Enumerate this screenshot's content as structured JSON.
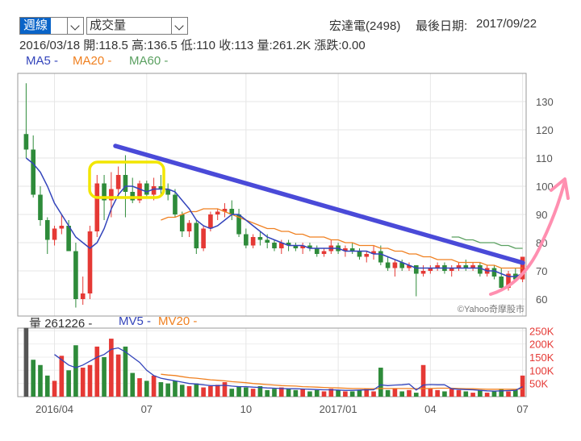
{
  "controls": {
    "period": "週線",
    "indicator": "成交量"
  },
  "stock": {
    "name_code": "宏達電(2498)",
    "last_date_label": "最後日期:",
    "last_date": "2017/09/22"
  },
  "ohlc": {
    "date": "2016/03/18",
    "open_label": "開:",
    "open": "118.5",
    "high_label": "高:",
    "high": "136.5",
    "low_label": "低:",
    "low": "110",
    "close_label": "收:",
    "close": "113",
    "vol_label": "量:",
    "vol": "261.2K",
    "chg_label": "漲跌:",
    "chg": "0.00"
  },
  "legend": {
    "ma5": "MA5",
    "ma20": "MA20",
    "ma60": "MA60",
    "dash": "-",
    "volume_label": "量",
    "volume_value": "261226",
    "mv5": "MV5",
    "mv20": "MV20"
  },
  "watermark": "©Yahoo奇摩股市",
  "colors": {
    "up": "#e53935",
    "down": "#2e8b3a",
    "ma5": "#3344bb",
    "ma20": "#f08020",
    "ma60": "#5aa060",
    "trendline": "#4a4ad8",
    "highlight": "#f2e600",
    "arrow": "#ff8fb0"
  },
  "chart_data": {
    "type": "candlestick",
    "price_axis": {
      "ticks": [
        60,
        70,
        80,
        90,
        100,
        110,
        120,
        130
      ],
      "ylim": [
        54,
        140
      ]
    },
    "volume_axis": {
      "ticks": [
        "50K",
        "100K",
        "150K",
        "200K",
        "250K"
      ],
      "tick_values": [
        50,
        100,
        150,
        200,
        250
      ],
      "unit": "K",
      "ylim": [
        0,
        260
      ]
    },
    "x_ticks": [
      {
        "label": "2016/04",
        "index": 4
      },
      {
        "label": "07",
        "index": 17
      },
      {
        "label": "10",
        "index": 31
      },
      {
        "label": "2017/01",
        "index": 44
      },
      {
        "label": "04",
        "index": 57
      },
      {
        "label": "07",
        "index": 70
      }
    ],
    "candles": [
      [
        118.5,
        136.5,
        110,
        113
      ],
      [
        113,
        118,
        96,
        97
      ],
      [
        97,
        100,
        86,
        88
      ],
      [
        88,
        89,
        76,
        81
      ],
      [
        81,
        86,
        79,
        85
      ],
      [
        85,
        90,
        83,
        86
      ],
      [
        86,
        88,
        77,
        77
      ],
      [
        77,
        80,
        57,
        60
      ],
      [
        60,
        68,
        58,
        62
      ],
      [
        62,
        86,
        60,
        84
      ],
      [
        84,
        104,
        82,
        101
      ],
      [
        101,
        104,
        88,
        95
      ],
      [
        95,
        105,
        89,
        99
      ],
      [
        99,
        107,
        96,
        104
      ],
      [
        104,
        111,
        89,
        98
      ],
      [
        98,
        103,
        94,
        95
      ],
      [
        95,
        102,
        94,
        101
      ],
      [
        101,
        102,
        96,
        97
      ],
      [
        97,
        103,
        95,
        100
      ],
      [
        100,
        104,
        97,
        99
      ],
      [
        99,
        101,
        95,
        97
      ],
      [
        97,
        99,
        89,
        90
      ],
      [
        90,
        91,
        82,
        84
      ],
      [
        84,
        88,
        82,
        87
      ],
      [
        87,
        88,
        76,
        78
      ],
      [
        78,
        86,
        77,
        85
      ],
      [
        85,
        91,
        84,
        90
      ],
      [
        90,
        92,
        88,
        91
      ],
      [
        91,
        94,
        89,
        92
      ],
      [
        92,
        95,
        88,
        90
      ],
      [
        90,
        92,
        82,
        83
      ],
      [
        83,
        85,
        78,
        79
      ],
      [
        79,
        83,
        78,
        82
      ],
      [
        82,
        84,
        79,
        81
      ],
      [
        81,
        83,
        78,
        80
      ],
      [
        80,
        81,
        77,
        78
      ],
      [
        78,
        81,
        76,
        80
      ],
      [
        80,
        81,
        77,
        79
      ],
      [
        79,
        80,
        77,
        78
      ],
      [
        78,
        80,
        76,
        79
      ],
      [
        79,
        80,
        77,
        78
      ],
      [
        78,
        79,
        75,
        76
      ],
      [
        76,
        78,
        75,
        77
      ],
      [
        77,
        81,
        76,
        79
      ],
      [
        79,
        80,
        76,
        77
      ],
      [
        77,
        79,
        75,
        78
      ],
      [
        78,
        80,
        76,
        77
      ],
      [
        77,
        78,
        74,
        75
      ],
      [
        75,
        77,
        73,
        76
      ],
      [
        76,
        79,
        74,
        77
      ],
      [
        77,
        79,
        72,
        73
      ],
      [
        73,
        75,
        70,
        71
      ],
      [
        71,
        74,
        68,
        73
      ],
      [
        73,
        74,
        70,
        71
      ],
      [
        71,
        73,
        70,
        72
      ],
      [
        72,
        72,
        61,
        69
      ],
      [
        69,
        72,
        68,
        70
      ],
      [
        70,
        72,
        69,
        71
      ],
      [
        71,
        73,
        70,
        72
      ],
      [
        72,
        73,
        69,
        70
      ],
      [
        70,
        72,
        68,
        71
      ],
      [
        71,
        73,
        70,
        72
      ],
      [
        72,
        74,
        70,
        71
      ],
      [
        71,
        73,
        70,
        72
      ],
      [
        72,
        73,
        68,
        69
      ],
      [
        69,
        72,
        68,
        71
      ],
      [
        71,
        72,
        67,
        68
      ],
      [
        68,
        71,
        63,
        64
      ],
      [
        64,
        70,
        63,
        69
      ],
      [
        69,
        71,
        66,
        67
      ],
      [
        67,
        75,
        66,
        75
      ]
    ],
    "ma5": [
      110,
      108,
      105,
      100,
      94,
      90,
      86,
      82,
      80,
      78,
      80,
      85,
      92,
      97,
      100,
      100,
      99,
      98,
      99,
      99,
      99,
      98,
      95,
      92,
      88,
      86,
      85,
      86,
      88,
      90,
      90,
      88,
      86,
      84,
      82,
      81,
      80,
      79,
      79,
      79,
      78,
      78,
      78,
      78,
      78,
      77,
      77,
      77,
      77,
      76,
      76,
      75,
      74,
      73,
      72,
      71,
      71,
      71,
      71,
      71,
      71,
      71,
      71,
      71,
      71,
      70,
      70,
      69,
      68,
      68,
      69
    ],
    "ma20": [
      null,
      null,
      null,
      null,
      null,
      null,
      null,
      null,
      null,
      null,
      null,
      null,
      null,
      null,
      null,
      null,
      null,
      null,
      null,
      88,
      89,
      89,
      90,
      91,
      91,
      92,
      92,
      92,
      91,
      90,
      89,
      88,
      87,
      86,
      85,
      85,
      84,
      84,
      83,
      83,
      82,
      82,
      82,
      81,
      81,
      80,
      80,
      79,
      79,
      79,
      78,
      78,
      77,
      77,
      76,
      76,
      75,
      75,
      74,
      74,
      74,
      73,
      73,
      73,
      73,
      72,
      72,
      71,
      71,
      71,
      71
    ],
    "ma60": [
      null,
      null,
      null,
      null,
      null,
      null,
      null,
      null,
      null,
      null,
      null,
      null,
      null,
      null,
      null,
      null,
      null,
      null,
      null,
      null,
      null,
      null,
      null,
      null,
      null,
      null,
      null,
      null,
      null,
      null,
      null,
      null,
      null,
      null,
      null,
      null,
      null,
      null,
      null,
      null,
      null,
      null,
      null,
      null,
      null,
      null,
      null,
      null,
      null,
      null,
      null,
      null,
      null,
      null,
      null,
      null,
      null,
      null,
      null,
      null,
      82,
      82,
      81,
      81,
      80,
      80,
      80,
      79,
      79,
      78,
      78
    ],
    "volumes_k": [
      261,
      140,
      120,
      80,
      60,
      155,
      100,
      195,
      110,
      120,
      190,
      150,
      220,
      160,
      190,
      90,
      70,
      60,
      80,
      55,
      50,
      60,
      45,
      40,
      50,
      35,
      40,
      45,
      55,
      30,
      40,
      35,
      30,
      40,
      25,
      30,
      35,
      30,
      25,
      30,
      20,
      25,
      20,
      30,
      25,
      20,
      20,
      25,
      30,
      20,
      110,
      25,
      30,
      20,
      25,
      15,
      120,
      30,
      25,
      20,
      30,
      25,
      20,
      15,
      25,
      15,
      20,
      30,
      20,
      25,
      80
    ],
    "mv5": [
      null,
      null,
      null,
      null,
      160,
      140,
      120,
      110,
      120,
      135,
      150,
      160,
      180,
      185,
      170,
      150,
      130,
      100,
      80,
      70,
      65,
      60,
      55,
      50,
      48,
      45,
      42,
      42,
      43,
      40,
      38,
      38,
      36,
      35,
      33,
      32,
      31,
      30,
      30,
      29,
      28,
      27,
      26,
      26,
      25,
      24,
      24,
      25,
      26,
      26,
      45,
      42,
      44,
      45,
      48,
      25,
      44,
      46,
      45,
      45,
      30,
      28,
      27,
      26,
      24,
      22,
      21,
      22,
      23,
      24,
      38
    ],
    "mv20": [
      null,
      null,
      null,
      null,
      null,
      null,
      null,
      null,
      null,
      null,
      null,
      null,
      null,
      null,
      null,
      null,
      null,
      null,
      null,
      85,
      82,
      80,
      76,
      72,
      70,
      67,
      64,
      62,
      60,
      57,
      55,
      53,
      50,
      48,
      46,
      44,
      42,
      41,
      40,
      38,
      37,
      36,
      35,
      34,
      33,
      32,
      31,
      31,
      30,
      30,
      31,
      31,
      31,
      31,
      31,
      30,
      31,
      31,
      32,
      32,
      32,
      31,
      30,
      30,
      29,
      28,
      28,
      28,
      28,
      28,
      29
    ]
  }
}
